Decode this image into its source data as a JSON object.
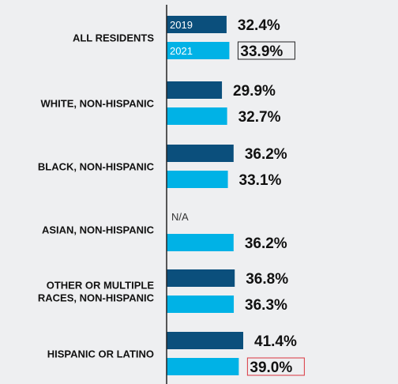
{
  "chart_data": {
    "type": "bar",
    "orientation": "horizontal",
    "categories": [
      [
        "ALL RESIDENTS"
      ],
      [
        "WHITE, NON-HISPANIC"
      ],
      [
        "BLACK, NON-HISPANIC"
      ],
      [
        "ASIAN, NON-HISPANIC"
      ],
      [
        "OTHER OR MULTIPLE",
        "RACES, NON-HISPANIC"
      ],
      [
        "HISPANIC OR LATINO"
      ]
    ],
    "series": [
      {
        "name": "2019",
        "color": "#0b4f7c",
        "values": [
          32.4,
          29.9,
          36.2,
          null,
          36.8,
          41.4
        ],
        "labels": [
          "32.4%",
          "29.9%",
          "36.2%",
          "N/A",
          "36.8%",
          "41.4%"
        ]
      },
      {
        "name": "2021",
        "color": "#00b2e6",
        "values": [
          33.9,
          32.7,
          33.1,
          36.2,
          36.3,
          39.0
        ],
        "labels": [
          "33.9%",
          "32.7%",
          "33.1%",
          "36.2%",
          "36.3%",
          "39.0%"
        ]
      }
    ],
    "highlights": [
      {
        "series": 1,
        "index": 0,
        "style": "boxed",
        "color": "#222222"
      },
      {
        "series": 1,
        "index": 5,
        "style": "boxed",
        "color": "#d9363e"
      }
    ],
    "legend_placement": "inside-first-bars",
    "xlim": [
      0,
      45
    ],
    "grid": false
  }
}
